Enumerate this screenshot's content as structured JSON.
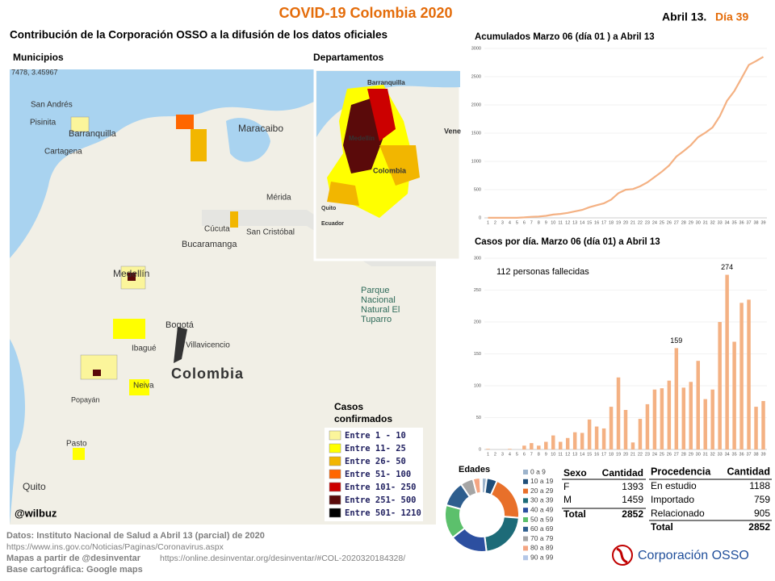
{
  "header": {
    "title": "COVID-19 Colombia 2020",
    "date": "Abril 13.",
    "day": "Día 39",
    "subtitle": "Contribución de la Corporación OSSO a la difusión de los datos oficiales"
  },
  "maps": {
    "municipios": {
      "title": "Municipios",
      "coordinates": "7478, 3.45967",
      "credit": "@wilbuz",
      "labels": [
        "San Andrés",
        "Pisinita",
        "Barranquilla",
        "Cartagena",
        "Maracaibo",
        "Mérida",
        "Cúcuta",
        "San Cristóbal",
        "Bucaramanga",
        "Medellín",
        "Bogotá",
        "Ibagué",
        "Villavicencio",
        "Neiva",
        "Popayán",
        "Pasto",
        "Quito",
        "Parque",
        "Nacional",
        "Natural El",
        "Tuparro",
        "Colombia"
      ]
    },
    "departamentos": {
      "title": "Departamentos",
      "labels": [
        "Barranquilla",
        "Medellín",
        "Colombia",
        "Quito",
        "Ecuador",
        "Vene"
      ]
    }
  },
  "legend": {
    "title": [
      "Casos",
      "confirmados"
    ],
    "entries": [
      {
        "label": "Entre 1 - 10",
        "color": "#fbf59b"
      },
      {
        "label": "Entre 11- 25",
        "color": "#ffff00"
      },
      {
        "label": "Entre 26- 50",
        "color": "#f2b600"
      },
      {
        "label": "Entre 51- 100",
        "color": "#ff6600"
      },
      {
        "label": "Entre 101- 250",
        "color": "#cc0000"
      },
      {
        "label": "Entre 251- 500",
        "color": "#5a0a0a"
      },
      {
        "label": "Entre 501- 1210",
        "color": "#000000"
      }
    ]
  },
  "chart_data": [
    {
      "type": "line",
      "title": "Acumulados  Marzo 06 (día 01 ) a Abril 13",
      "color": "#f4b183",
      "categories": [
        "1",
        "2",
        "3",
        "4",
        "5",
        "6",
        "7",
        "8",
        "9",
        "10",
        "11",
        "12",
        "13",
        "14",
        "15",
        "16",
        "17",
        "18",
        "19",
        "20",
        "21",
        "22",
        "23",
        "24",
        "25",
        "26",
        "27",
        "28",
        "29",
        "30",
        "31",
        "32",
        "33",
        "34",
        "35",
        "36",
        "37",
        "38",
        "39"
      ],
      "values": [
        1,
        1,
        1,
        2,
        2,
        8,
        18,
        24,
        36,
        58,
        70,
        88,
        115,
        141,
        188,
        224,
        257,
        324,
        437,
        499,
        510,
        558,
        629,
        723,
        819,
        927,
        1086,
        1183,
        1289,
        1428,
        1507,
        1601,
        1801,
        2075,
        2244,
        2474,
        2709,
        2776,
        2852
      ],
      "ylim": [
        0,
        3000
      ],
      "yticks": [
        0,
        500,
        1000,
        1500,
        2000,
        2500,
        3000
      ]
    },
    {
      "type": "bar",
      "title": "Casos por día. Marzo 06 (día 01) a Abril 13",
      "annotation": "112  personas fallecidas",
      "color": "#f4b183",
      "categories": [
        "1",
        "2",
        "3",
        "4",
        "5",
        "6",
        "7",
        "8",
        "9",
        "10",
        "11",
        "12",
        "13",
        "14",
        "15",
        "16",
        "17",
        "18",
        "19",
        "20",
        "21",
        "22",
        "23",
        "24",
        "25",
        "26",
        "27",
        "28",
        "29",
        "30",
        "31",
        "32",
        "33",
        "34",
        "35",
        "36",
        "37",
        "38",
        "39"
      ],
      "values": [
        1,
        0,
        0,
        1,
        0,
        6,
        10,
        6,
        12,
        22,
        12,
        18,
        27,
        26,
        47,
        36,
        33,
        67,
        113,
        62,
        11,
        48,
        71,
        94,
        96,
        108,
        159,
        97,
        106,
        139,
        79,
        94,
        200,
        274,
        169,
        230,
        235,
        67,
        76
      ],
      "value_labels": [
        null,
        null,
        null,
        null,
        null,
        null,
        null,
        null,
        null,
        null,
        null,
        null,
        null,
        null,
        null,
        null,
        null,
        null,
        null,
        null,
        null,
        null,
        null,
        null,
        null,
        null,
        "159",
        null,
        null,
        null,
        null,
        null,
        null,
        "274",
        null,
        null,
        null,
        null,
        null
      ],
      "ylim": [
        0,
        300
      ],
      "yticks": [
        0,
        50,
        100,
        150,
        200,
        250,
        300
      ]
    },
    {
      "type": "pie",
      "title": "Edades",
      "donut": true,
      "categories": [
        "0 a 9",
        "10 a 19",
        "20 a 29",
        "30 a 39",
        "40 a 49",
        "50 a 59",
        "60 a 69",
        "70 a 79",
        "80 a 89",
        "90 a 99"
      ],
      "values": [
        60,
        130,
        560,
        620,
        470,
        420,
        320,
        160,
        90,
        22
      ],
      "colors": [
        "#9db4cc",
        "#1f4e79",
        "#e8702a",
        "#1d6b78",
        "#2c4fa0",
        "#5cc06c",
        "#2e5e8e",
        "#a5a5a5",
        "#f4a582",
        "#b4c7e7"
      ]
    }
  ],
  "tables": {
    "sexo": {
      "columns": [
        "Sexo",
        "Cantidad"
      ],
      "rows": [
        [
          "F",
          1393
        ],
        [
          "M",
          1459
        ]
      ],
      "total": [
        "Total",
        2852
      ]
    },
    "procedencia": {
      "columns": [
        "Procedencia",
        "Cantidad"
      ],
      "rows": [
        [
          "En estudio",
          1188
        ],
        [
          "Importado",
          759
        ],
        [
          "Relacionado",
          905
        ]
      ],
      "total": [
        "Total",
        2852
      ]
    }
  },
  "footer": {
    "data": "Datos: Instituto Nacional de Salud a Abril 13 (parcial) de 2020",
    "data_url": "https://www.ins.gov.co/Noticias/Paginas/Coronavirus.aspx",
    "maps": "Mapas a partir de @desinventar",
    "maps_url": "https://online.desinventar.org/desinventar/#COL-2020320184328/",
    "base": "Base cartográfica: Google  maps"
  },
  "logo": "Corporación OSSO"
}
